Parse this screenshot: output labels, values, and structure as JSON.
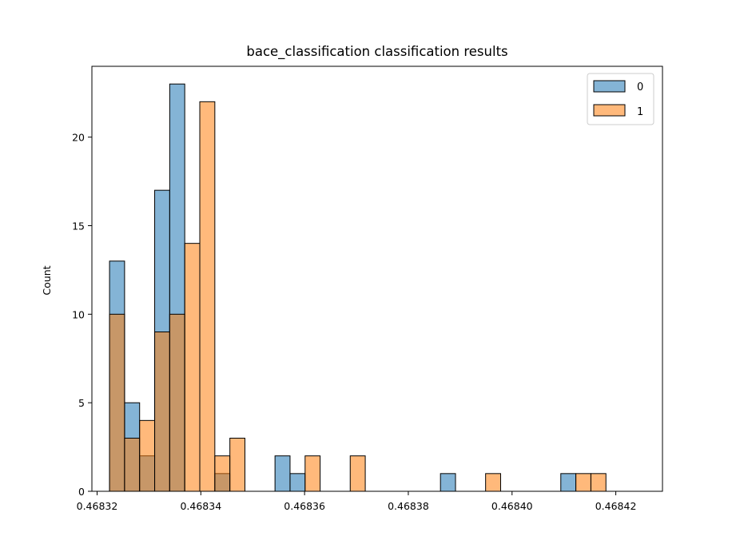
{
  "chart_data": {
    "type": "histogram",
    "title": "bace_classification classification results",
    "xlabel": "",
    "ylabel": "Count",
    "xlim": [
      0.468319,
      0.468429
    ],
    "ylim": [
      0,
      24
    ],
    "bin_start": 0.4683224,
    "bin_width": 2.9e-06,
    "xticks": [
      0.46832,
      0.46834,
      0.46836,
      0.46838,
      0.4684,
      0.46842
    ],
    "xtick_labels": [
      "0.46832",
      "0.46834",
      "0.46836",
      "0.46838",
      "0.46840",
      "0.46842"
    ],
    "yticks": [
      0,
      5,
      10,
      15,
      20
    ],
    "ytick_labels": [
      "0",
      "5",
      "10",
      "15",
      "20"
    ],
    "legend_position": "top-right",
    "series": [
      {
        "name": "0",
        "color": "#1f77b4",
        "counts": [
          13,
          5,
          2,
          17,
          23,
          0,
          0,
          1,
          0,
          0,
          0,
          2,
          1,
          0,
          0,
          0,
          0,
          0,
          0,
          0,
          0,
          0,
          1,
          0,
          0,
          0,
          0,
          0,
          0,
          0,
          1,
          0,
          0
        ]
      },
      {
        "name": "1",
        "color": "#ff7f0e",
        "counts": [
          10,
          3,
          4,
          9,
          10,
          14,
          22,
          2,
          3,
          0,
          0,
          0,
          0,
          2,
          0,
          0,
          2,
          0,
          0,
          0,
          0,
          0,
          0,
          0,
          0,
          1,
          0,
          0,
          0,
          0,
          0,
          1,
          1
        ]
      }
    ]
  }
}
